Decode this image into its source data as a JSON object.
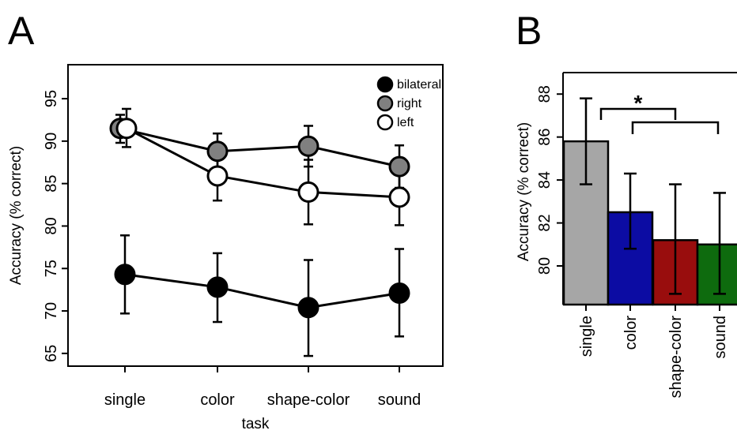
{
  "panel_labels": [
    "A",
    "B"
  ],
  "chart_data": [
    {
      "type": "line",
      "xlabel": "task",
      "ylabel": "Accuracy (% correct)",
      "categories": [
        "single",
        "color",
        "shape-color",
        "sound"
      ],
      "ylim": [
        63.5,
        99
      ],
      "yticks": [
        "65",
        "70",
        "75",
        "80",
        "85",
        "90",
        "95"
      ],
      "legend_position": "top-right",
      "series": [
        {
          "name": "bilateral",
          "color": "#000000",
          "values": [
            74.3,
            72.8,
            70.4,
            72.1
          ],
          "err_low": [
            69.7,
            68.7,
            64.7,
            67.0
          ],
          "err_high": [
            78.9,
            76.8,
            76.0,
            77.3
          ]
        },
        {
          "name": "right",
          "color": "#808080",
          "values": [
            91.5,
            88.8,
            89.4,
            87.0
          ],
          "err_low": [
            89.8,
            86.7,
            87.0,
            84.5
          ],
          "err_high": [
            93.1,
            90.9,
            91.8,
            89.5
          ]
        },
        {
          "name": "left",
          "color": "#ffffff",
          "values": [
            91.5,
            85.9,
            84.0,
            83.4
          ],
          "err_low": [
            89.3,
            83.0,
            80.2,
            80.1
          ],
          "err_high": [
            93.8,
            88.9,
            87.8,
            86.8
          ]
        }
      ]
    },
    {
      "type": "bar",
      "ylabel": "Accuracy (% correct)",
      "categories": [
        "single",
        "color",
        "shape-color",
        "sound"
      ],
      "values": [
        85.8,
        82.5,
        81.2,
        81.0
      ],
      "err_low": [
        83.8,
        80.8,
        78.7,
        78.7
      ],
      "err_high": [
        87.8,
        84.3,
        83.8,
        83.4
      ],
      "colors": [
        "#a6a6a6",
        "#0c0ca3",
        "#990d0d",
        "#0e6b0e"
      ],
      "ylim": [
        78.2,
        89.0
      ],
      "yticks": [
        "80",
        "82",
        "84",
        "86",
        "88"
      ],
      "annotation": "*"
    }
  ]
}
